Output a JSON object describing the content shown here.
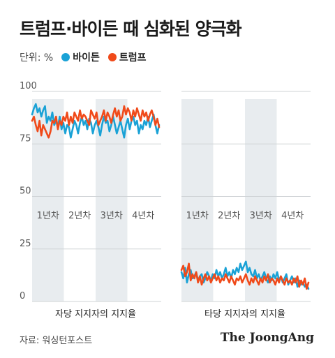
{
  "title": "트럼프·바이든 때 심화된 양극화",
  "legend": {
    "unit": "단위: %",
    "items": [
      {
        "label": "바이든",
        "color": "#1aa2d6"
      },
      {
        "label": "트럼프",
        "color": "#f04a1a"
      }
    ]
  },
  "source": "자료: 워싱턴포스트",
  "brand": "The JoongAng",
  "chart_data": {
    "type": "line",
    "ylim": [
      0,
      100
    ],
    "yticks": [
      100,
      75,
      50,
      25,
      0
    ],
    "year_labels": [
      "1년차",
      "2년차",
      "3년차",
      "4년차"
    ],
    "panels": [
      {
        "xlabel": "자당 지지자의 지지율",
        "series": [
          {
            "name": "바이든",
            "color": "#1aa2d6",
            "values": [
              89,
              92,
              94,
              90,
              92,
              88,
              91,
              93,
              85,
              88,
              86,
              90,
              84,
              86,
              83,
              88,
              82,
              85,
              80,
              84,
              83,
              78,
              82,
              86,
              84,
              80,
              85,
              88,
              84,
              86,
              82,
              87,
              85,
              80,
              84,
              86,
              83,
              79,
              84,
              88,
              85,
              86,
              81,
              84,
              88,
              84,
              80,
              83,
              86,
              82,
              78,
              84,
              87,
              82,
              86,
              88,
              84,
              86,
              80,
              84,
              82,
              86,
              84,
              88,
              83,
              86,
              89,
              84,
              80,
              84
            ]
          },
          {
            "name": "트럼프",
            "color": "#f04a1a",
            "values": [
              86,
              88,
              84,
              81,
              86,
              79,
              84,
              82,
              80,
              78,
              81,
              86,
              85,
              88,
              82,
              86,
              84,
              88,
              86,
              90,
              84,
              88,
              85,
              90,
              88,
              86,
              91,
              87,
              89,
              88,
              86,
              84,
              91,
              89,
              87,
              90,
              84,
              86,
              88,
              91,
              86,
              90,
              88,
              85,
              89,
              92,
              88,
              91,
              86,
              88,
              93,
              89,
              92,
              90,
              86,
              91,
              88,
              92,
              89,
              86,
              91,
              88,
              90,
              86,
              89,
              91,
              88,
              84,
              87,
              83
            ]
          }
        ]
      },
      {
        "xlabel": "타당 지지자의 지지율",
        "series": [
          {
            "name": "바이든",
            "color": "#1aa2d6",
            "values": [
              14,
              11,
              16,
              9,
              13,
              15,
              11,
              12,
              14,
              10,
              12,
              13,
              9,
              11,
              14,
              12,
              10,
              13,
              11,
              15,
              12,
              14,
              11,
              13,
              16,
              12,
              14,
              11,
              15,
              13,
              16,
              14,
              18,
              15,
              17,
              19,
              14,
              16,
              13,
              12,
              15,
              11,
              13,
              10,
              12,
              14,
              11,
              9,
              12,
              10,
              13,
              11,
              14,
              10,
              12,
              9,
              11,
              13,
              8,
              10,
              12,
              9,
              11,
              7,
              10,
              8,
              9,
              7,
              8,
              6
            ]
          },
          {
            "name": "트럼프",
            "color": "#f04a1a",
            "values": [
              15,
              17,
              12,
              14,
              18,
              10,
              13,
              11,
              14,
              9,
              12,
              8,
              11,
              13,
              10,
              12,
              9,
              11,
              13,
              10,
              12,
              9,
              11,
              10,
              13,
              11,
              9,
              12,
              10,
              8,
              11,
              10,
              12,
              9,
              11,
              13,
              10,
              8,
              11,
              9,
              12,
              10,
              8,
              11,
              9,
              12,
              10,
              13,
              9,
              11,
              10,
              8,
              11,
              9,
              12,
              10,
              8,
              11,
              9,
              10,
              8,
              11,
              9,
              12,
              7,
              10,
              8,
              11,
              6,
              9
            ]
          }
        ]
      }
    ]
  }
}
